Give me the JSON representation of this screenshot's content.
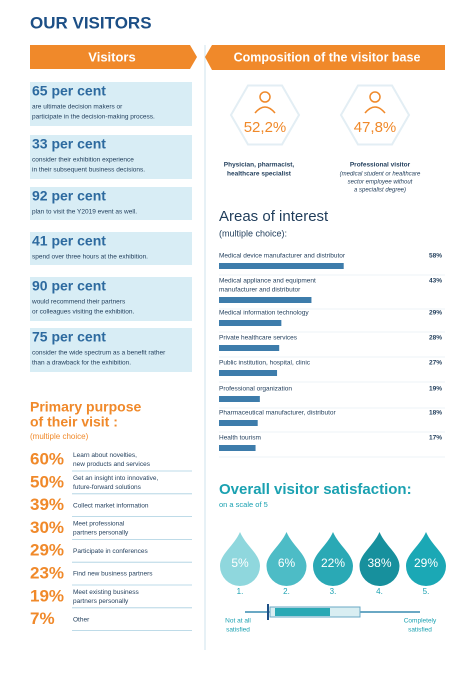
{
  "header": {
    "title": "OUR VISITORS"
  },
  "visitors": {
    "title": "Visitors",
    "items": [
      {
        "figure": "65 per cent",
        "lines": [
          "are ultimate decision makers or",
          "participate in the decision-making process."
        ]
      },
      {
        "figure": "33 per cent",
        "lines": [
          "consider their exhibition experience",
          "in their subsequent business decisions."
        ]
      },
      {
        "figure": "92 per cent",
        "lines": [
          "plan to visit the Y2019 event as well."
        ]
      },
      {
        "figure": "41 per cent",
        "lines": [
          "spend over three hours at the exhibition."
        ]
      },
      {
        "figure": "90 per cent",
        "lines": [
          "would recommend their partners",
          "or colleagues visiting the exhibition."
        ]
      },
      {
        "figure": "75 per cent",
        "lines": [
          "consider the wide spectrum as a benefit rather",
          "than a drawback for the exhibition."
        ]
      }
    ]
  },
  "purpose": {
    "title": [
      "Primary purpose",
      "of their visit :"
    ],
    "subtitle": "(multiple choice)",
    "items": [
      {
        "value": "60%",
        "lines": [
          "Learn about novelties,",
          "new products and services"
        ]
      },
      {
        "value": "50%",
        "lines": [
          "Get an insight into innovative,",
          "future-forward solutions"
        ]
      },
      {
        "value": "39%",
        "lines": [
          "Collect market information"
        ]
      },
      {
        "value": "30%",
        "lines": [
          "Meet professional",
          "partners personally"
        ]
      },
      {
        "value": "29%",
        "lines": [
          "Participate in conferences"
        ]
      },
      {
        "value": "23%",
        "lines": [
          "Find new business partners"
        ]
      },
      {
        "value": "19%",
        "lines": [
          "Meet existing business",
          "partners personally"
        ]
      },
      {
        "value": "7%",
        "lines": [
          "Other"
        ]
      }
    ]
  },
  "composition": {
    "title": "Composition of the visitor base",
    "groups": [
      {
        "value": "52,2%",
        "label": [
          "Physician, pharmacist,",
          "healthcare specialist"
        ],
        "note": []
      },
      {
        "value": "47,8%",
        "label": [
          "Professional visitor"
        ],
        "note": [
          "(medical student or healthcare",
          "sector employee without",
          "a specialist degree)"
        ]
      }
    ]
  },
  "interest": {
    "title": "Areas of interest",
    "subtitle": "(multiple choice):",
    "items": [
      {
        "lines": [
          "Medical device manufacturer and distributor"
        ],
        "share": {
          "value": 58,
          "label": "58%"
        }
      },
      {
        "lines": [
          "Medical appliance and equipment",
          "manufacturer and distributor"
        ],
        "share": {
          "value": 43,
          "label": "43%"
        }
      },
      {
        "lines": [
          "Medical information technology"
        ],
        "share": {
          "value": 29,
          "label": "29%"
        }
      },
      {
        "lines": [
          "Private healthcare services"
        ],
        "share": {
          "value": 28,
          "label": "28%"
        }
      },
      {
        "lines": [
          "Public institution, hospital, clinic"
        ],
        "share": {
          "value": 27,
          "label": "27%"
        }
      },
      {
        "lines": [
          "Professional organization"
        ],
        "share": {
          "value": 19,
          "label": "19%"
        }
      },
      {
        "lines": [
          "Pharmaceutical manufacturer, distributor"
        ],
        "share": {
          "value": 18,
          "label": "18%"
        }
      },
      {
        "lines": [
          "Health tourism"
        ],
        "share": {
          "value": 17,
          "label": "17%"
        }
      }
    ]
  },
  "satisfaction": {
    "title": "Overall visitor satisfaction:",
    "subtitle": "on a scale of 5",
    "ratings": [
      {
        "score": "1.",
        "share": "5%"
      },
      {
        "score": "2.",
        "share": "6%"
      },
      {
        "score": "3.",
        "share": "22%"
      },
      {
        "score": "4.",
        "share": "38%"
      },
      {
        "score": "5.",
        "share": "29%"
      }
    ],
    "low_label": [
      "Not at all",
      "satisfied"
    ],
    "high_label": [
      "Completely",
      "satisfied"
    ]
  }
}
